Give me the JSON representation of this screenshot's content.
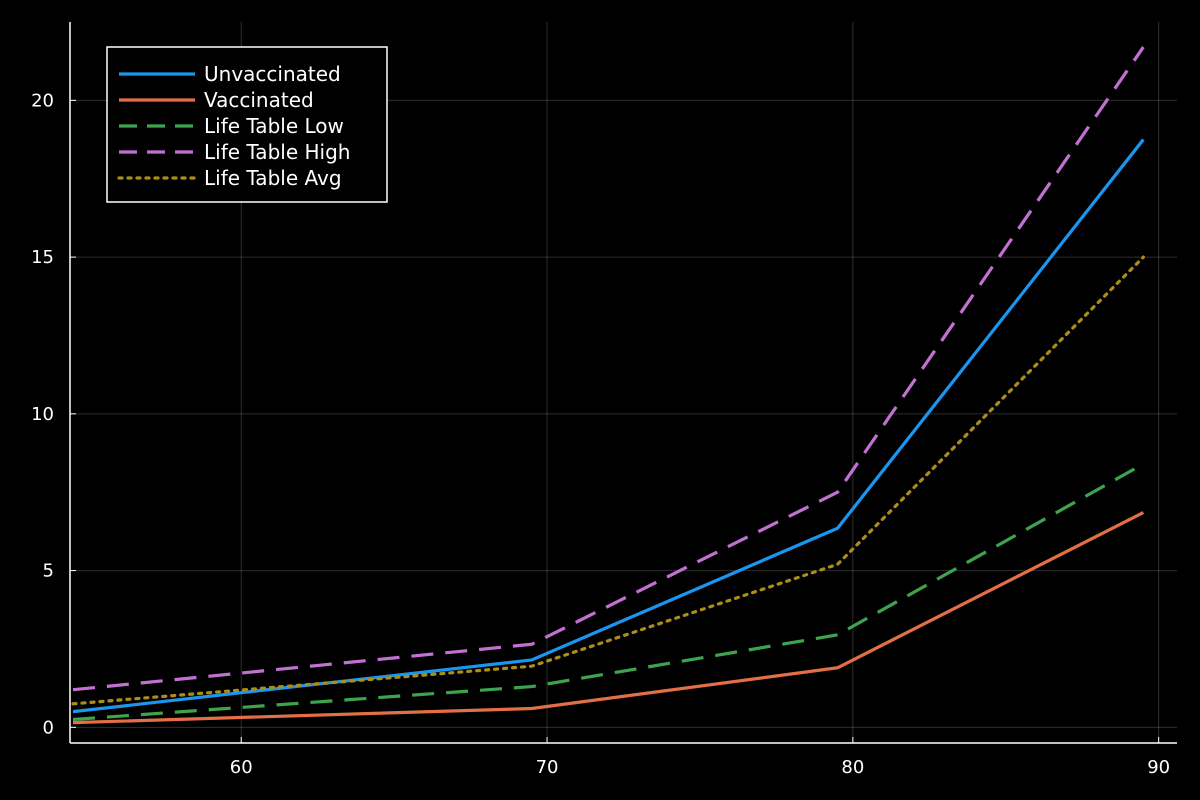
{
  "chart_data": {
    "type": "line",
    "title": "",
    "xlabel": "",
    "ylabel": "",
    "xlim": [
      54.4,
      90.6
    ],
    "ylim": [
      -0.5,
      22.5
    ],
    "xticks": [
      60,
      70,
      80,
      90
    ],
    "yticks": [
      0,
      5,
      10,
      15,
      20
    ],
    "x_tick_labels": [
      "60",
      "70",
      "80",
      "90"
    ],
    "y_tick_labels": [
      "0",
      "5",
      "10",
      "15",
      "20"
    ],
    "grid": true,
    "legend_position": "top-left",
    "background": "#000000",
    "series": [
      {
        "name": "Unvaccinated",
        "color": "#1a96f0",
        "style": "solid",
        "x": [
          54.5,
          69.5,
          79.5,
          89.5
        ],
        "y": [
          0.5,
          2.15,
          6.35,
          18.75
        ]
      },
      {
        "name": "Vaccinated",
        "color": "#e26f46",
        "style": "solid",
        "x": [
          54.5,
          69.5,
          79.5,
          89.5
        ],
        "y": [
          0.15,
          0.6,
          1.9,
          6.85
        ]
      },
      {
        "name": "Life Table Low",
        "color": "#3da44d",
        "style": "dash",
        "x": [
          54.5,
          69.5,
          79.5,
          89.5
        ],
        "y": [
          0.25,
          1.3,
          2.95,
          8.4
        ]
      },
      {
        "name": "Life Table High",
        "color": "#c271d2",
        "style": "dash",
        "x": [
          54.5,
          69.5,
          79.5,
          89.5
        ],
        "y": [
          1.2,
          2.65,
          7.5,
          21.7
        ]
      },
      {
        "name": "Life Table Avg",
        "color": "#ac8d18",
        "style": "dot",
        "x": [
          54.5,
          69.5,
          79.5,
          89.5
        ],
        "y": [
          0.75,
          1.95,
          5.2,
          15.0
        ]
      }
    ]
  }
}
